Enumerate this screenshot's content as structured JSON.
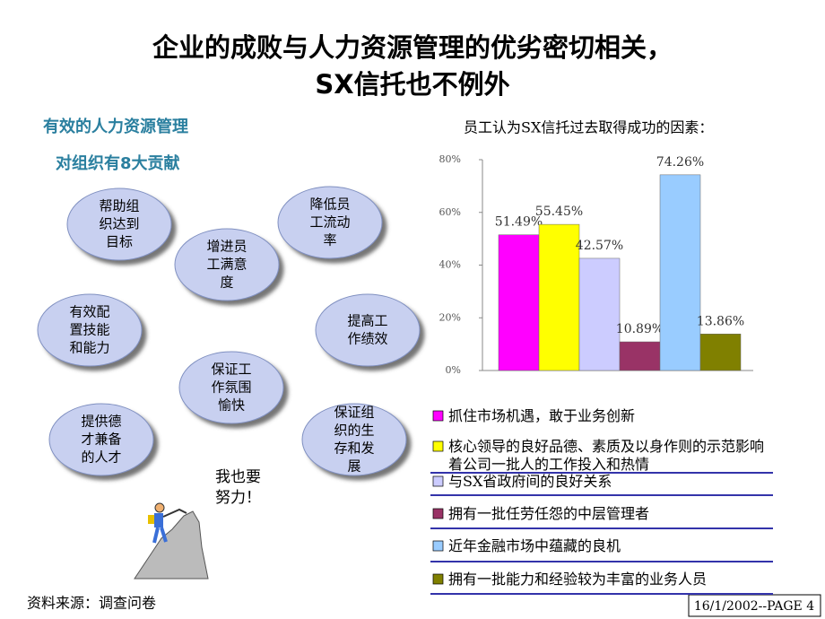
{
  "header": {
    "title_lines": [
      "企业的成败与人力资源管理的优劣密切相关，",
      "SX信托也不例外"
    ]
  },
  "left": {
    "heading": "有效的人力资源管理",
    "subheading": "对组织有8大贡献",
    "bubbles": [
      {
        "lines": [
          "帮助组",
          "织达到",
          "目标"
        ]
      },
      {
        "lines": [
          "增进员",
          "工满意",
          "度"
        ]
      },
      {
        "lines": [
          "降低员",
          "工流动",
          "率"
        ]
      },
      {
        "lines": [
          "有效配",
          "置技能",
          "和能力"
        ]
      },
      {
        "lines": [
          "提高工",
          "作绩效"
        ]
      },
      {
        "lines": [
          "保证工",
          "作氛围",
          "愉快"
        ]
      },
      {
        "lines": [
          "提供德",
          "才兼备",
          "的人才"
        ]
      },
      {
        "lines": [
          "保证组",
          "织的生",
          "存和发",
          "展"
        ]
      }
    ],
    "climber_text": [
      "我也要",
      "努力！"
    ]
  },
  "chart_data": {
    "type": "bar",
    "title": "员工认为SX信托过去取得成功的因素：",
    "categories": [
      "抓住市场机遇，敢于业务创新",
      "核心领导的良好品德、素质及以身作则的示范影响着公司一批人的工作投入和热情",
      "与SX省政府间的良好关系",
      "拥有一批任劳任怨的中层管理者",
      "近年金融市场中蕴藏的良机",
      "拥有一批能力和经验较为丰富的业务人员"
    ],
    "values": [
      51.49,
      55.45,
      42.57,
      10.89,
      74.26,
      13.86
    ],
    "value_labels": [
      "51.49%",
      "55.45%",
      "42.57%",
      "10.89%",
      "74.26%",
      "13.86%"
    ],
    "colors": [
      "#ff00ff",
      "#ffff00",
      "#ccccff",
      "#993366",
      "#99ccff",
      "#808000"
    ],
    "ylim": [
      0,
      80
    ],
    "yticks": [
      {
        "value": 0,
        "label": "0%"
      },
      {
        "value": 20,
        "label": "20%"
      },
      {
        "value": 40,
        "label": "40%"
      },
      {
        "value": 60,
        "label": "60%"
      },
      {
        "value": 80,
        "label": "80%"
      }
    ]
  },
  "footer": {
    "source": "资料来源：调查问卷",
    "page": "16/1/2002--PAGE 4"
  }
}
